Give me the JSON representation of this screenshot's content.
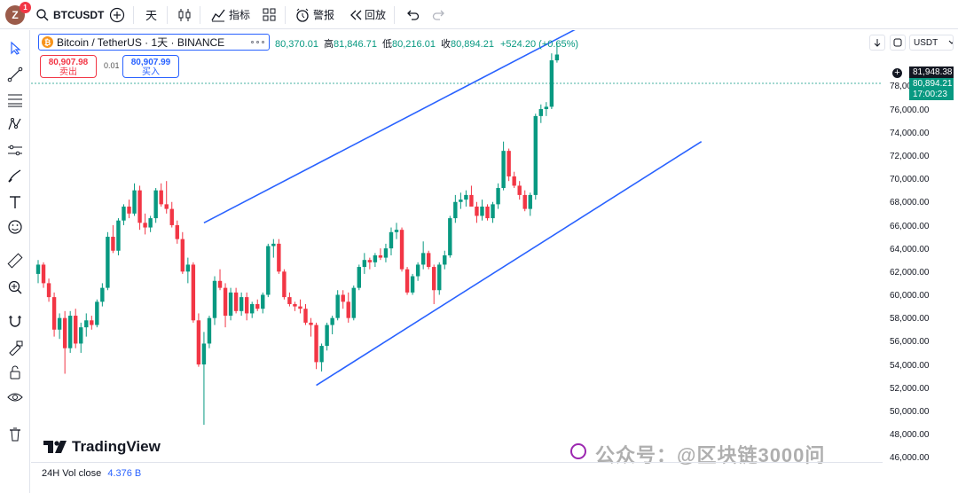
{
  "topbar": {
    "avatar_letter": "Z",
    "avatar_badge": "1",
    "symbol": "BTCUSDT",
    "interval": "天",
    "indicators_label": "指标",
    "alert_label": "警报",
    "replay_label": "回放"
  },
  "legend": {
    "title": "Bitcoin / TetherUS · 1天 · BINANCE",
    "open_key": "开",
    "open": "80,370.01",
    "high_key": "高",
    "high": "81,846.71",
    "low_key": "低",
    "low": "80,216.01",
    "close_key": "收",
    "close": "80,894.21",
    "change": "+524.20 (+0.65%)"
  },
  "trade": {
    "sell_price": "80,907.98",
    "sell_label": "卖出",
    "spread": "0.01",
    "buy_price": "80,907.99",
    "buy_label": "买入"
  },
  "currency": "USDT",
  "price_axis": {
    "ticks": [
      "78,000.00",
      "76,000.00",
      "74,000.00",
      "72,000.00",
      "70,000.00",
      "68,000.00",
      "66,000.00",
      "64,000.00",
      "62,000.00",
      "60,000.00",
      "58,000.00",
      "56,000.00",
      "54,000.00",
      "52,000.00",
      "50,000.00",
      "48,000.00",
      "46,000.00"
    ],
    "high_label": "81,948.38",
    "last_price": "80,894.21",
    "countdown": "17:00:23"
  },
  "logo_text": "TradingView",
  "volume": {
    "label": "24H Vol close",
    "value": "4.376 B"
  },
  "watermark": "公众号：@区块链3000问",
  "colors": {
    "up": "#089981",
    "down": "#f23645",
    "channel": "#2962ff",
    "price_tag": "#089981"
  },
  "icons": [
    "cursor-icon",
    "trend-line-icon",
    "fib-icon",
    "pattern-icon",
    "forecast-icon",
    "brush-icon",
    "text-icon",
    "emoji-icon",
    "ruler-icon",
    "zoom-icon",
    "magnet-icon",
    "lock-draw-icon",
    "unlock-icon",
    "eye-icon",
    "trash-icon"
  ],
  "chart_data": {
    "type": "candlestick",
    "symbol": "BTCUSDT",
    "interval": "1D",
    "y_range": [
      45800,
      83000
    ],
    "candles": [
      [
        62000,
        63200,
        61200,
        62800
      ],
      [
        62800,
        63000,
        60800,
        61200
      ],
      [
        61200,
        61600,
        59600,
        60000
      ],
      [
        60000,
        60400,
        56600,
        57200
      ],
      [
        57200,
        58600,
        56400,
        58200
      ],
      [
        58200,
        58800,
        53400,
        55600
      ],
      [
        55600,
        58800,
        55200,
        58400
      ],
      [
        58400,
        59000,
        55600,
        56000
      ],
      [
        56000,
        57800,
        55200,
        57400
      ],
      [
        57400,
        58600,
        56600,
        58000
      ],
      [
        58000,
        58400,
        57200,
        57600
      ],
      [
        57600,
        59800,
        57400,
        59600
      ],
      [
        59600,
        61200,
        59200,
        60800
      ],
      [
        60800,
        65600,
        60600,
        65200
      ],
      [
        65200,
        66200,
        63800,
        64000
      ],
      [
        64000,
        66800,
        63600,
        66600
      ],
      [
        66600,
        68000,
        66200,
        67800
      ],
      [
        67800,
        68400,
        66800,
        67200
      ],
      [
        67200,
        69800,
        67000,
        69200
      ],
      [
        69200,
        69600,
        65800,
        66400
      ],
      [
        66400,
        67200,
        65400,
        66000
      ],
      [
        66000,
        67000,
        65600,
        66800
      ],
      [
        66800,
        69400,
        66400,
        69200
      ],
      [
        69200,
        69800,
        67800,
        68000
      ],
      [
        68000,
        70000,
        67200,
        67600
      ],
      [
        67600,
        68200,
        66000,
        66200
      ],
      [
        66200,
        66600,
        64600,
        65000
      ],
      [
        65000,
        65600,
        62000,
        62200
      ],
      [
        62200,
        63400,
        61200,
        62800
      ],
      [
        62800,
        63000,
        57800,
        58000
      ],
      [
        58000,
        58600,
        54000,
        54200
      ],
      [
        54200,
        57000,
        49000,
        56000
      ],
      [
        56000,
        58400,
        55600,
        58200
      ],
      [
        58200,
        61800,
        57600,
        61400
      ],
      [
        61400,
        62400,
        60600,
        60800
      ],
      [
        60800,
        61200,
        57400,
        58400
      ],
      [
        58400,
        60800,
        58000,
        60400
      ],
      [
        60400,
        60800,
        58600,
        58800
      ],
      [
        58800,
        60400,
        58400,
        60000
      ],
      [
        60000,
        60400,
        58000,
        58600
      ],
      [
        58600,
        59600,
        58200,
        59400
      ],
      [
        59400,
        59800,
        58800,
        59000
      ],
      [
        59000,
        60400,
        58600,
        60200
      ],
      [
        60200,
        64600,
        60000,
        64400
      ],
      [
        64400,
        65000,
        63400,
        64600
      ],
      [
        64600,
        65000,
        62000,
        62200
      ],
      [
        62200,
        62400,
        59800,
        60000
      ],
      [
        60000,
        60400,
        59200,
        59400
      ],
      [
        59400,
        59600,
        58800,
        59200
      ],
      [
        59200,
        59800,
        58600,
        59000
      ],
      [
        59000,
        59400,
        57600,
        57800
      ],
      [
        57800,
        58200,
        56600,
        57600
      ],
      [
        57600,
        57800,
        53800,
        54400
      ],
      [
        54400,
        56000,
        53600,
        55800
      ],
      [
        55800,
        57800,
        55400,
        57600
      ],
      [
        57600,
        58400,
        56800,
        58200
      ],
      [
        58200,
        60600,
        58000,
        60200
      ],
      [
        60200,
        60600,
        59000,
        59600
      ],
      [
        59600,
        60400,
        57800,
        58200
      ],
      [
        58200,
        61000,
        58000,
        60800
      ],
      [
        60800,
        62800,
        60600,
        62600
      ],
      [
        62600,
        63800,
        62000,
        63200
      ],
      [
        63200,
        63400,
        62400,
        63000
      ],
      [
        63000,
        63800,
        62600,
        63600
      ],
      [
        63600,
        64200,
        63200,
        63400
      ],
      [
        63400,
        64600,
        63000,
        64200
      ],
      [
        64200,
        66000,
        63600,
        65600
      ],
      [
        65600,
        66400,
        65000,
        65800
      ],
      [
        65800,
        66000,
        62200,
        62400
      ],
      [
        62400,
        62600,
        60200,
        60400
      ],
      [
        60400,
        62000,
        60200,
        61800
      ],
      [
        61800,
        63000,
        61400,
        62800
      ],
      [
        62800,
        64800,
        62400,
        63800
      ],
      [
        63800,
        64000,
        62400,
        62600
      ],
      [
        62600,
        62800,
        59400,
        60600
      ],
      [
        60600,
        63000,
        60200,
        62800
      ],
      [
        62800,
        64000,
        62400,
        63600
      ],
      [
        63600,
        67000,
        63400,
        66800
      ],
      [
        66800,
        68800,
        66400,
        68200
      ],
      [
        68200,
        69000,
        67600,
        68400
      ],
      [
        68400,
        69200,
        67800,
        68800
      ],
      [
        68800,
        69600,
        68000,
        67800
      ],
      [
        67800,
        68200,
        66400,
        67000
      ],
      [
        67000,
        68400,
        66600,
        67800
      ],
      [
        67800,
        68000,
        66600,
        66800
      ],
      [
        66800,
        68200,
        66400,
        68000
      ],
      [
        68000,
        69800,
        67600,
        69400
      ],
      [
        69400,
        73400,
        69200,
        72600
      ],
      [
        72600,
        72800,
        70000,
        70400
      ],
      [
        70400,
        70800,
        69400,
        69600
      ],
      [
        69600,
        70000,
        68400,
        68800
      ],
      [
        68800,
        69200,
        67400,
        67600
      ],
      [
        67600,
        69000,
        67000,
        68800
      ],
      [
        68800,
        75800,
        68400,
        75600
      ],
      [
        75600,
        76600,
        75000,
        76200
      ],
      [
        76200,
        76800,
        75600,
        76400
      ],
      [
        76400,
        81000,
        76200,
        80400
      ],
      [
        80400,
        81900,
        80200,
        80900
      ]
    ],
    "channel": {
      "upper": {
        "from": [
          31,
          66400
        ],
        "to": [
          106,
          84400
        ]
      },
      "lower": {
        "from": [
          52,
          52400
        ],
        "to": [
          124,
          73400
        ]
      }
    }
  }
}
